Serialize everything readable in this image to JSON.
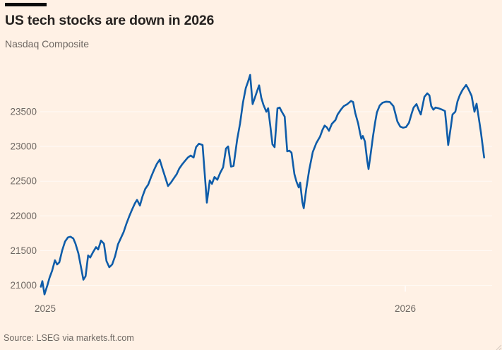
{
  "page": {
    "background_color": "#FFF1E5"
  },
  "header": {
    "kicker_bar_color": "#0B0B0B",
    "title": "US tech stocks are down in 2026",
    "subtitle": "Nasdaq Composite"
  },
  "footer": {
    "source": "Source: LSEG via markets.ft.com"
  },
  "icons": {
    "resize_grip": "diagonal-lines"
  },
  "chart_data": {
    "type": "line",
    "title": "US tech stocks are down in 2026",
    "subtitle": "Nasdaq Composite",
    "xlabel": "",
    "ylabel": "",
    "x_tick_labels": [
      "2025",
      "2026"
    ],
    "x_ticks": [
      2025,
      2026
    ],
    "y_ticks": [
      21000,
      21500,
      22000,
      22500,
      23000,
      23500
    ],
    "y_range": [
      20850,
      24150
    ],
    "x_range": [
      2024.994,
      2026.23
    ],
    "grid": "horizontal-faint",
    "grid_color": "rgba(255,255,255,0.65)",
    "tick_color": "rgba(255,255,255,0.9)",
    "axis_text_color": "#6E6762",
    "legend": "none",
    "series": [
      {
        "name": "Nasdaq Composite",
        "color": "#0E5CA9",
        "points": [
          [
            2024.994,
            20980
          ],
          [
            2024.998,
            21060
          ],
          [
            2025.004,
            20870
          ],
          [
            2025.012,
            21000
          ],
          [
            2025.018,
            21110
          ],
          [
            2025.025,
            21210
          ],
          [
            2025.033,
            21360
          ],
          [
            2025.039,
            21300
          ],
          [
            2025.045,
            21330
          ],
          [
            2025.053,
            21500
          ],
          [
            2025.061,
            21630
          ],
          [
            2025.069,
            21690
          ],
          [
            2025.076,
            21700
          ],
          [
            2025.084,
            21675
          ],
          [
            2025.09,
            21600
          ],
          [
            2025.098,
            21460
          ],
          [
            2025.104,
            21300
          ],
          [
            2025.112,
            21080
          ],
          [
            2025.118,
            21130
          ],
          [
            2025.125,
            21430
          ],
          [
            2025.131,
            21400
          ],
          [
            2025.139,
            21480
          ],
          [
            2025.147,
            21550
          ],
          [
            2025.153,
            21515
          ],
          [
            2025.161,
            21645
          ],
          [
            2025.169,
            21600
          ],
          [
            2025.176,
            21350
          ],
          [
            2025.184,
            21260
          ],
          [
            2025.192,
            21300
          ],
          [
            2025.2,
            21420
          ],
          [
            2025.208,
            21590
          ],
          [
            2025.216,
            21680
          ],
          [
            2025.224,
            21770
          ],
          [
            2025.231,
            21880
          ],
          [
            2025.239,
            21990
          ],
          [
            2025.247,
            22090
          ],
          [
            2025.255,
            22180
          ],
          [
            2025.261,
            22230
          ],
          [
            2025.269,
            22150
          ],
          [
            2025.276,
            22280
          ],
          [
            2025.284,
            22390
          ],
          [
            2025.292,
            22450
          ],
          [
            2025.3,
            22560
          ],
          [
            2025.308,
            22660
          ],
          [
            2025.316,
            22750
          ],
          [
            2025.324,
            22810
          ],
          [
            2025.331,
            22690
          ],
          [
            2025.339,
            22560
          ],
          [
            2025.347,
            22430
          ],
          [
            2025.355,
            22480
          ],
          [
            2025.363,
            22540
          ],
          [
            2025.371,
            22600
          ],
          [
            2025.378,
            22680
          ],
          [
            2025.386,
            22740
          ],
          [
            2025.394,
            22790
          ],
          [
            2025.402,
            22840
          ],
          [
            2025.41,
            22870
          ],
          [
            2025.418,
            22840
          ],
          [
            2025.425,
            22990
          ],
          [
            2025.433,
            23040
          ],
          [
            2025.443,
            23020
          ],
          [
            2025.449,
            22600
          ],
          [
            2025.455,
            22190
          ],
          [
            2025.463,
            22510
          ],
          [
            2025.469,
            22460
          ],
          [
            2025.476,
            22560
          ],
          [
            2025.484,
            22520
          ],
          [
            2025.492,
            22620
          ],
          [
            2025.5,
            22700
          ],
          [
            2025.508,
            22970
          ],
          [
            2025.514,
            23000
          ],
          [
            2025.522,
            22710
          ],
          [
            2025.529,
            22720
          ],
          [
            2025.539,
            23100
          ],
          [
            2025.547,
            23330
          ],
          [
            2025.555,
            23630
          ],
          [
            2025.563,
            23840
          ],
          [
            2025.569,
            23930
          ],
          [
            2025.575,
            24030
          ],
          [
            2025.582,
            23610
          ],
          [
            2025.588,
            23700
          ],
          [
            2025.594,
            23790
          ],
          [
            2025.6,
            23880
          ],
          [
            2025.606,
            23700
          ],
          [
            2025.612,
            23600
          ],
          [
            2025.62,
            23500
          ],
          [
            2025.625,
            23550
          ],
          [
            2025.631,
            23300
          ],
          [
            2025.637,
            23030
          ],
          [
            2025.643,
            22990
          ],
          [
            2025.651,
            23550
          ],
          [
            2025.657,
            23560
          ],
          [
            2025.663,
            23500
          ],
          [
            2025.671,
            23430
          ],
          [
            2025.678,
            22930
          ],
          [
            2025.684,
            22940
          ],
          [
            2025.69,
            22910
          ],
          [
            2025.698,
            22600
          ],
          [
            2025.704,
            22490
          ],
          [
            2025.71,
            22410
          ],
          [
            2025.714,
            22480
          ],
          [
            2025.72,
            22200
          ],
          [
            2025.724,
            22110
          ],
          [
            2025.731,
            22390
          ],
          [
            2025.739,
            22660
          ],
          [
            2025.749,
            22920
          ],
          [
            2025.759,
            23050
          ],
          [
            2025.769,
            23140
          ],
          [
            2025.776,
            23240
          ],
          [
            2025.782,
            23300
          ],
          [
            2025.788,
            23275
          ],
          [
            2025.794,
            23225
          ],
          [
            2025.802,
            23325
          ],
          [
            2025.812,
            23380
          ],
          [
            2025.818,
            23460
          ],
          [
            2025.827,
            23530
          ],
          [
            2025.835,
            23580
          ],
          [
            2025.845,
            23610
          ],
          [
            2025.855,
            23655
          ],
          [
            2025.861,
            23640
          ],
          [
            2025.867,
            23480
          ],
          [
            2025.875,
            23330
          ],
          [
            2025.88,
            23200
          ],
          [
            2025.884,
            23110
          ],
          [
            2025.888,
            23150
          ],
          [
            2025.894,
            23070
          ],
          [
            2025.9,
            22800
          ],
          [
            2025.904,
            22675
          ],
          [
            2025.91,
            22900
          ],
          [
            2025.916,
            23140
          ],
          [
            2025.922,
            23340
          ],
          [
            2025.927,
            23490
          ],
          [
            2025.935,
            23590
          ],
          [
            2025.943,
            23630
          ],
          [
            2025.953,
            23645
          ],
          [
            2025.963,
            23640
          ],
          [
            2025.973,
            23580
          ],
          [
            2025.978,
            23480
          ],
          [
            2025.984,
            23360
          ],
          [
            2025.992,
            23285
          ],
          [
            2026.0,
            23270
          ],
          [
            2026.008,
            23280
          ],
          [
            2026.016,
            23340
          ],
          [
            2026.024,
            23480
          ],
          [
            2026.029,
            23560
          ],
          [
            2026.037,
            23610
          ],
          [
            2026.043,
            23530
          ],
          [
            2026.049,
            23460
          ],
          [
            2026.059,
            23715
          ],
          [
            2026.067,
            23765
          ],
          [
            2026.073,
            23735
          ],
          [
            2026.078,
            23580
          ],
          [
            2026.084,
            23530
          ],
          [
            2026.09,
            23560
          ],
          [
            2026.098,
            23550
          ],
          [
            2026.108,
            23530
          ],
          [
            2026.116,
            23510
          ],
          [
            2026.12,
            23310
          ],
          [
            2026.125,
            23020
          ],
          [
            2026.133,
            23300
          ],
          [
            2026.137,
            23460
          ],
          [
            2026.145,
            23500
          ],
          [
            2026.151,
            23650
          ],
          [
            2026.157,
            23735
          ],
          [
            2026.165,
            23815
          ],
          [
            2026.175,
            23885
          ],
          [
            2026.18,
            23840
          ],
          [
            2026.19,
            23730
          ],
          [
            2026.198,
            23500
          ],
          [
            2026.204,
            23615
          ],
          [
            2026.21,
            23410
          ],
          [
            2026.216,
            23200
          ],
          [
            2026.225,
            22840
          ]
        ]
      }
    ]
  }
}
